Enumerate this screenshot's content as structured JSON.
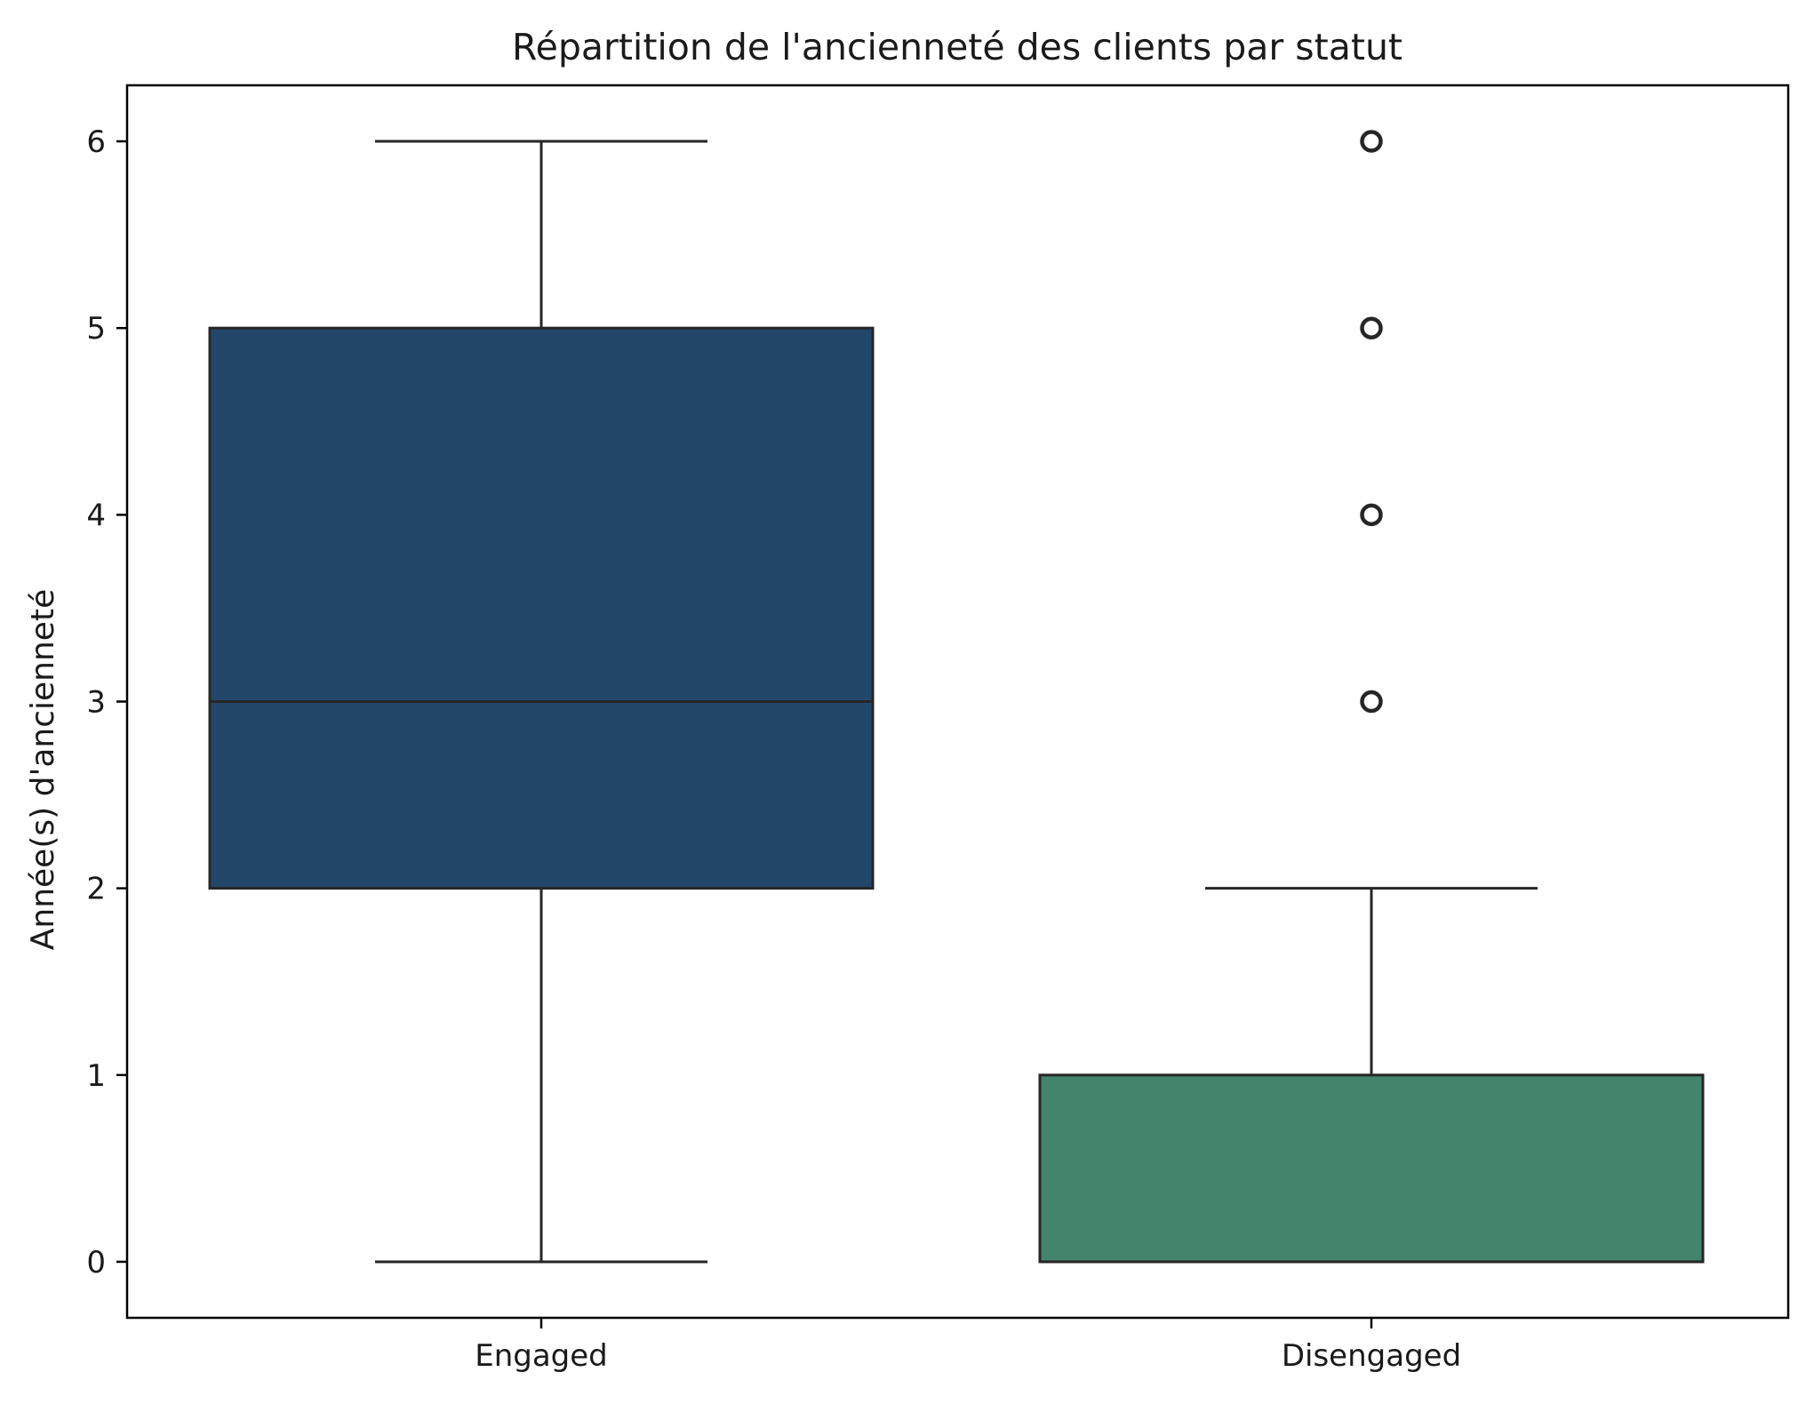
{
  "chart_data": {
    "type": "box",
    "title": "Répartition de l'ancienneté des clients par statut",
    "xlabel": "",
    "ylabel": "Année(s) d'ancienneté",
    "ylim": [
      -0.3,
      6.3
    ],
    "yticks": [
      0,
      1,
      2,
      3,
      4,
      5,
      6
    ],
    "categories": [
      "Engaged",
      "Disengaged"
    ],
    "grid": false,
    "legend": "none",
    "boxes": [
      {
        "category": "Engaged",
        "whisker_low": 0,
        "q1": 2,
        "median": 3,
        "q3": 5,
        "whisker_high": 6,
        "outliers": [],
        "color": "#23476a"
      },
      {
        "category": "Disengaged",
        "whisker_low": 0,
        "q1": 0,
        "median": 0,
        "q3": 1,
        "whisker_high": 2,
        "outliers": [
          3,
          4,
          5,
          6
        ],
        "color": "#44836c"
      }
    ],
    "line_color": "#262626"
  }
}
